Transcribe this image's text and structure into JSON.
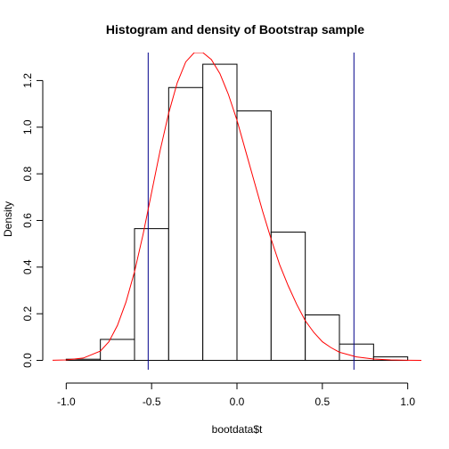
{
  "chart_data": {
    "type": "bar",
    "title": "Histogram and density of Bootstrap sample",
    "xlabel": "bootdata$t",
    "ylabel": "Density",
    "xlim": [
      -1.08,
      1.08
    ],
    "ylim": [
      -0.04,
      1.32
    ],
    "x_ticks": [
      -1.0,
      -0.5,
      0.0,
      0.5,
      1.0
    ],
    "x_tick_labels": [
      "-1.0",
      "-0.5",
      "0.0",
      "0.5",
      "1.0"
    ],
    "y_ticks": [
      0.0,
      0.2,
      0.4,
      0.6,
      0.8,
      1.0,
      1.2
    ],
    "y_tick_labels": [
      "0.0",
      "0.2",
      "0.4",
      "0.6",
      "0.8",
      "1.0",
      "1.2"
    ],
    "grid": false,
    "bins": [
      {
        "x0": -1.0,
        "x1": -0.8,
        "density": 0.005
      },
      {
        "x0": -0.8,
        "x1": -0.6,
        "density": 0.09
      },
      {
        "x0": -0.6,
        "x1": -0.4,
        "density": 0.565
      },
      {
        "x0": -0.4,
        "x1": -0.2,
        "density": 1.17
      },
      {
        "x0": -0.2,
        "x1": 0.0,
        "density": 1.27
      },
      {
        "x0": 0.0,
        "x1": 0.2,
        "density": 1.07
      },
      {
        "x0": 0.2,
        "x1": 0.4,
        "density": 0.55
      },
      {
        "x0": 0.4,
        "x1": 0.6,
        "density": 0.195
      },
      {
        "x0": 0.6,
        "x1": 0.8,
        "density": 0.07
      },
      {
        "x0": 0.8,
        "x1": 1.0,
        "density": 0.015
      }
    ],
    "density_curve": {
      "color": "#ff0000",
      "x": [
        -1.1,
        -1.0,
        -0.9,
        -0.8,
        -0.75,
        -0.7,
        -0.65,
        -0.6,
        -0.55,
        -0.5,
        -0.45,
        -0.4,
        -0.35,
        -0.3,
        -0.25,
        -0.2,
        -0.15,
        -0.1,
        -0.05,
        0.0,
        0.05,
        0.1,
        0.15,
        0.2,
        0.25,
        0.3,
        0.35,
        0.4,
        0.45,
        0.5,
        0.55,
        0.6,
        0.7,
        0.8,
        0.9,
        1.0,
        1.1
      ],
      "y": [
        0.0,
        0.002,
        0.01,
        0.04,
        0.08,
        0.15,
        0.25,
        0.38,
        0.54,
        0.72,
        0.9,
        1.06,
        1.19,
        1.28,
        1.32,
        1.32,
        1.29,
        1.23,
        1.14,
        1.03,
        0.9,
        0.77,
        0.64,
        0.52,
        0.41,
        0.32,
        0.24,
        0.17,
        0.12,
        0.08,
        0.055,
        0.035,
        0.015,
        0.006,
        0.002,
        0.0005,
        0.0
      ]
    },
    "vertical_lines": [
      {
        "x": -0.52,
        "color": "#00008b"
      },
      {
        "x": 0.685,
        "color": "#00008b"
      }
    ],
    "colors": {
      "bar_fill": "#ffffff",
      "bar_stroke": "#000000",
      "axis": "#000000"
    }
  }
}
